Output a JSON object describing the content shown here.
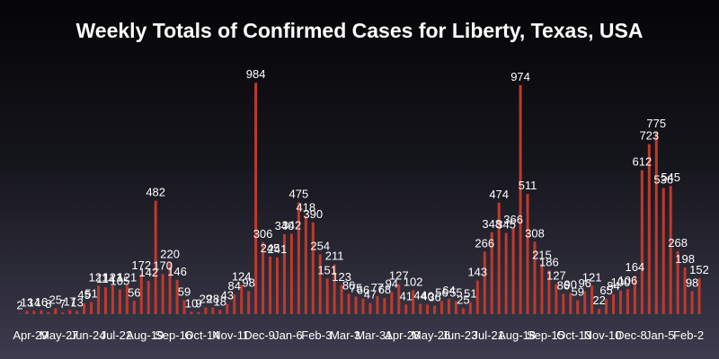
{
  "chart_data": {
    "type": "bar",
    "title": "Weekly Totals of Confirmed Cases for Liberty, Texas, USA",
    "xlabel": "",
    "ylabel": "",
    "bar_color": "#c0392b",
    "grid": false,
    "legend": "none",
    "ylim": [
      0,
      1000
    ],
    "tick_labels": [
      "Apr-29",
      "May-27",
      "Jun-24",
      "Jul-22",
      "Aug-19",
      "Sep-16",
      "Oct-14",
      "Nov-11",
      "Dec-9",
      "Jan-6",
      "Feb-3",
      "Mar-3",
      "Mar-31",
      "Apr-28",
      "May-26",
      "Jun-23",
      "Jul-21",
      "Aug-18",
      "Sep-15",
      "Oct-13",
      "Nov-10",
      "Dec-8",
      "Jan-5",
      "Feb-2"
    ],
    "values": [
      2,
      13,
      14,
      16,
      8,
      25,
      7,
      17,
      13,
      45,
      51,
      121,
      114,
      121,
      105,
      121,
      56,
      172,
      142,
      482,
      170,
      220,
      146,
      59,
      10,
      9,
      29,
      28,
      18,
      43,
      84,
      124,
      98,
      984,
      306,
      245,
      241,
      340,
      342,
      475,
      418,
      390,
      254,
      151,
      211,
      123,
      86,
      75,
      66,
      47,
      77,
      68,
      94,
      127,
      41,
      102,
      44,
      40,
      36,
      56,
      64,
      55,
      25,
      51,
      143,
      266,
      348,
      474,
      345,
      366,
      974,
      511,
      308,
      215,
      186,
      127,
      86,
      90,
      59,
      96,
      121,
      22,
      65,
      84,
      100,
      106,
      164,
      612,
      723,
      775,
      536,
      545,
      268,
      198,
      98,
      152
    ]
  }
}
